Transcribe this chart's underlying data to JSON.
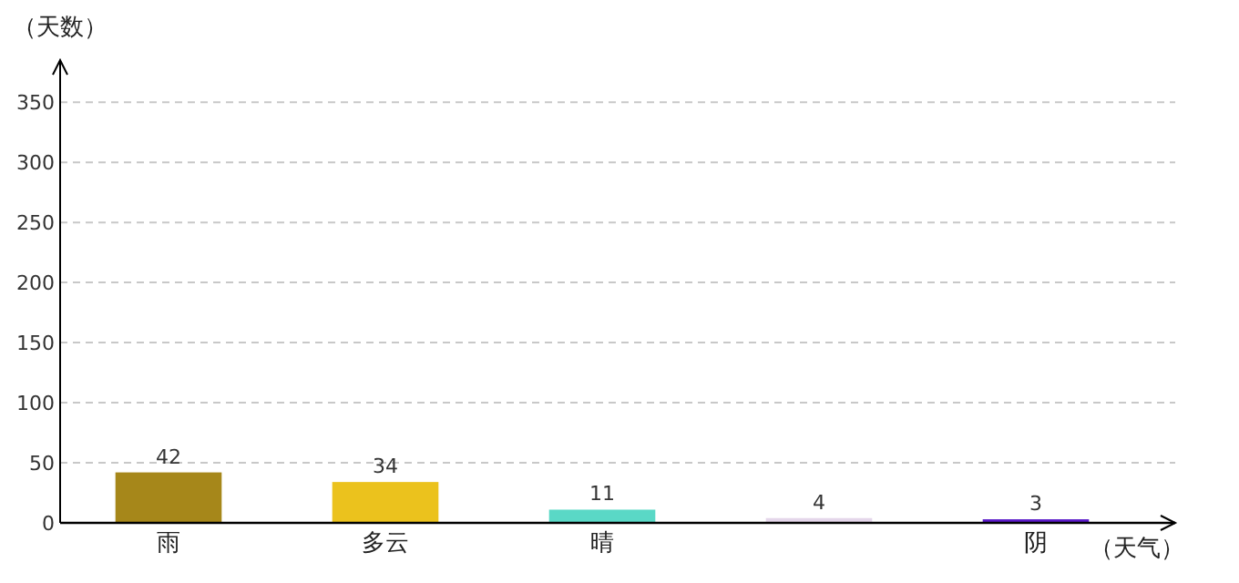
{
  "chart_data": {
    "type": "bar",
    "xlabel": "（天气）",
    "ylabel": "（天数）",
    "categories": [
      "雨",
      "多云",
      "晴",
      null,
      "阴"
    ],
    "values": [
      42,
      34,
      11,
      4,
      3
    ],
    "colors": [
      "#a6871a",
      "#ebc21d",
      "#5ad8c6",
      "#e4d6ea",
      "#5a1ac8"
    ],
    "ylim": [
      0,
      385
    ],
    "yticks": [
      0,
      50,
      100,
      150,
      200,
      250,
      300,
      350
    ],
    "grid": "y",
    "data_labels": true
  }
}
